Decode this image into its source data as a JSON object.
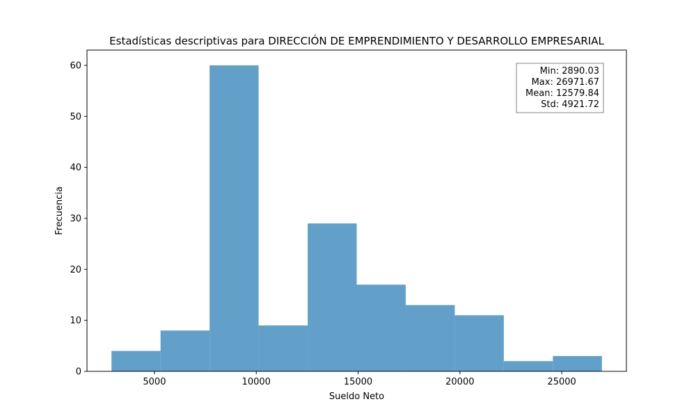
{
  "chart_data": {
    "type": "bar",
    "title": "Estadísticas descriptivas para DIRECCIÓN DE EMPRENDIMIENTO Y DESARROLLO EMPRESARIAL",
    "xlabel": "Sueldo Neto",
    "ylabel": "Frecuencia",
    "xlim": [
      1686.95,
      28174.75
    ],
    "ylim": [
      0,
      63
    ],
    "x_ticks": [
      5000,
      10000,
      15000,
      20000,
      25000
    ],
    "y_ticks": [
      0,
      10,
      20,
      30,
      40,
      50,
      60
    ],
    "bin_edges": [
      2890.03,
      5298.19,
      7706.36,
      10114.52,
      12522.68,
      14930.85,
      17339.01,
      19747.17,
      22155.34,
      24563.5,
      26971.67
    ],
    "values": [
      4,
      8,
      60,
      9,
      29,
      17,
      13,
      11,
      2,
      3
    ],
    "bar_color": "#62a0ca",
    "stats_box": {
      "placement": "top-right",
      "lines": [
        "Min: 2890.03",
        "Max: 26971.67",
        "Mean: 12579.84",
        "Std: 4921.72"
      ]
    }
  }
}
